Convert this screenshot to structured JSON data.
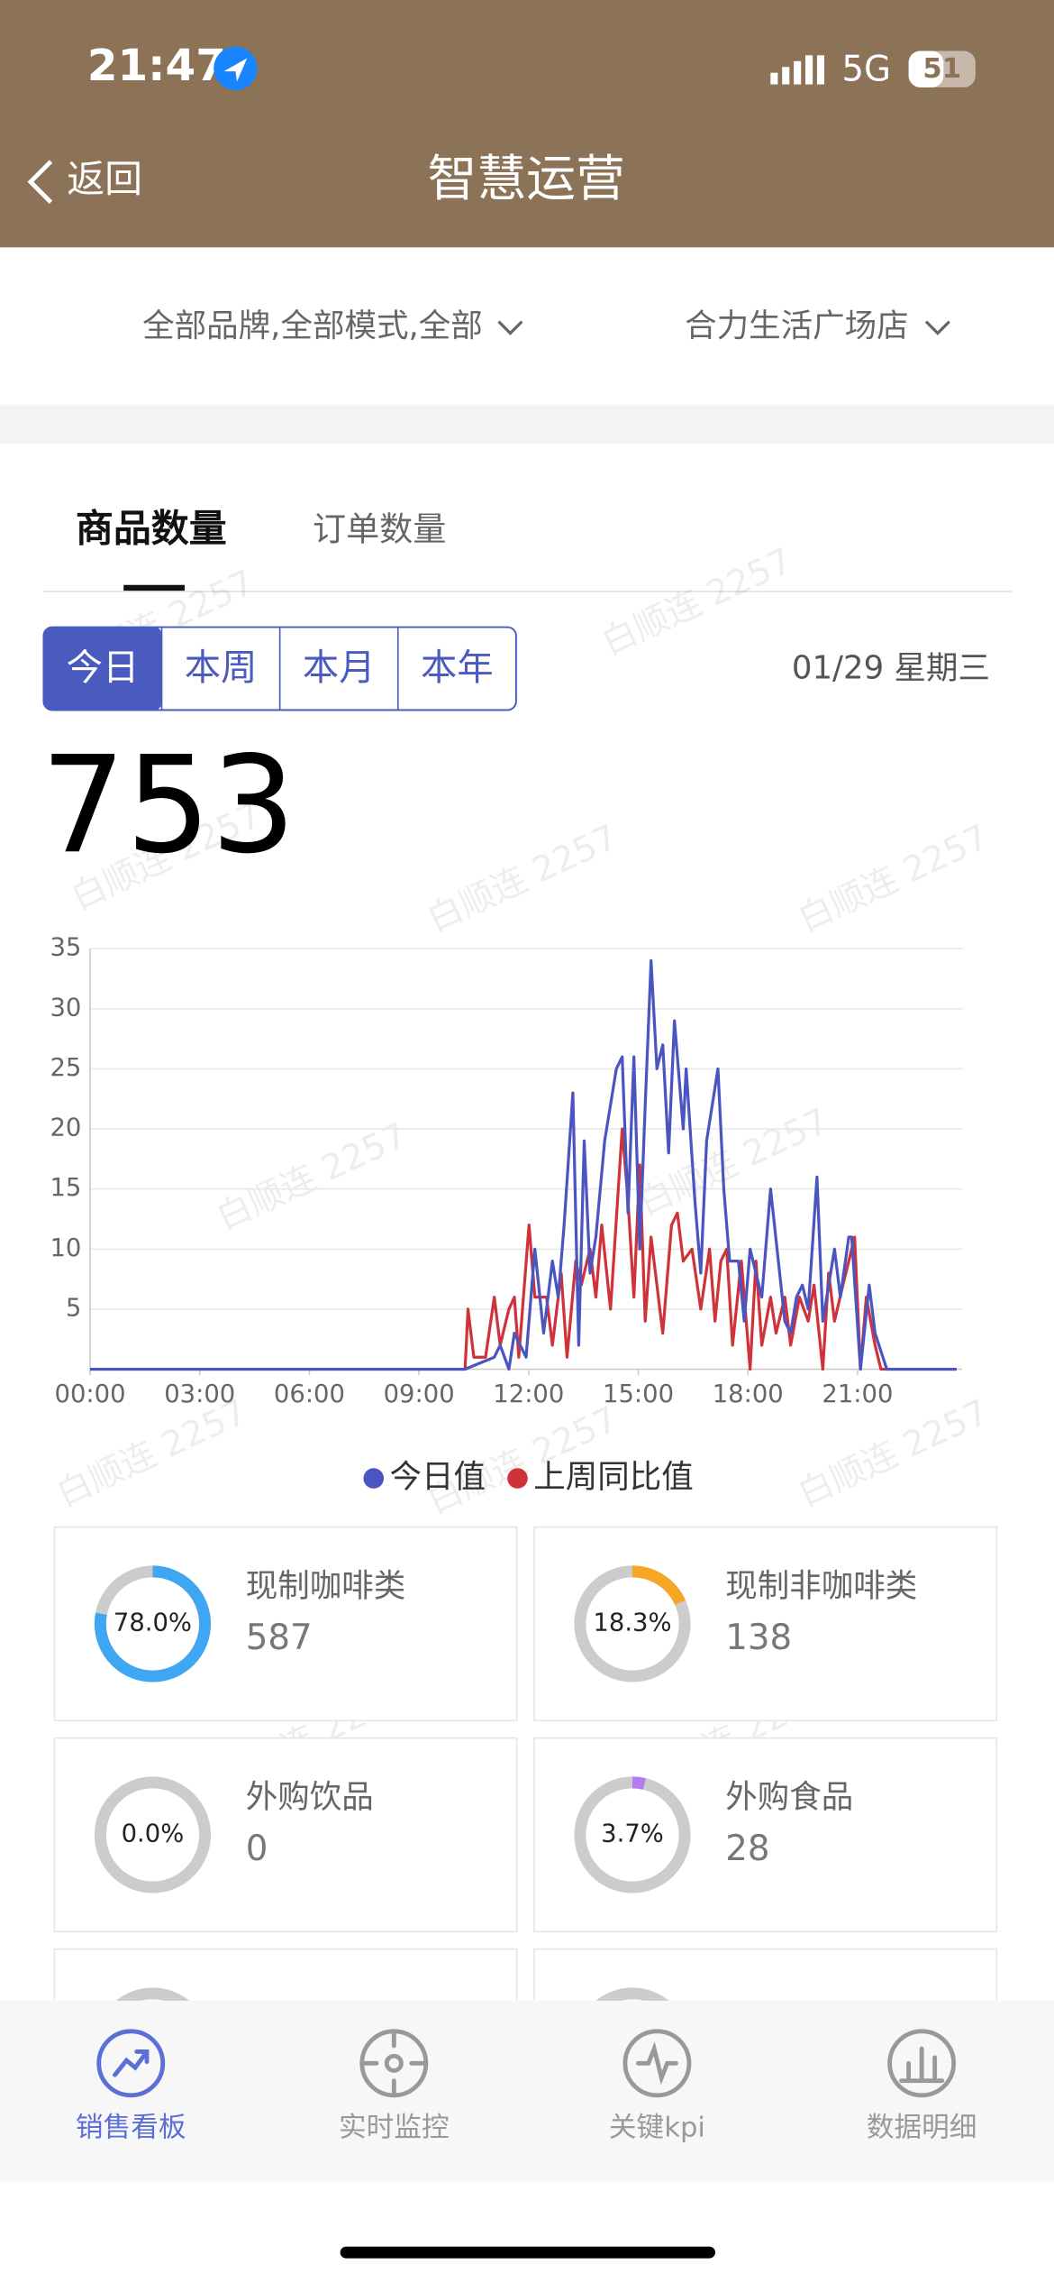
{
  "status_bar": {
    "time": "21:47",
    "network": "5G",
    "battery": "51"
  },
  "nav": {
    "back": "返回",
    "title": "智慧运营"
  },
  "filters": [
    "全部品牌,全部模式,全部",
    "合力生活广场店"
  ],
  "tabs": [
    "商品数量",
    "订单数量"
  ],
  "periods": [
    "今日",
    "本周",
    "本月",
    "本年"
  ],
  "date": "01/29 星期三",
  "total": 753,
  "watermark": "白顺连 2257",
  "chart_data": {
    "type": "line",
    "xlim": [
      0,
      23.87
    ],
    "ylim": [
      0,
      35
    ],
    "xticks": [
      {
        "value": 0,
        "label": "00:00"
      },
      {
        "value": 3,
        "label": "03:00"
      },
      {
        "value": 6,
        "label": "06:00"
      },
      {
        "value": 9,
        "label": "09:00"
      },
      {
        "value": 12,
        "label": "12:00"
      },
      {
        "value": 15,
        "label": "15:00"
      },
      {
        "value": 18,
        "label": "18:00"
      },
      {
        "value": 21,
        "label": "21:00"
      }
    ],
    "yticks": [
      5,
      10,
      15,
      20,
      25,
      30,
      35
    ],
    "grid": true,
    "legend": "bottom",
    "series": [
      {
        "name": "今日值",
        "color": "#4a55c0",
        "x": [
          0,
          10.26,
          11.06,
          11.22,
          11.46,
          11.61,
          11.93,
          12.17,
          12.41,
          12.65,
          12.81,
          12.97,
          13.21,
          13.37,
          13.52,
          13.68,
          13.84,
          14.08,
          14.4,
          14.56,
          14.72,
          14.88,
          15.04,
          15.19,
          15.35,
          15.51,
          15.67,
          15.83,
          15.99,
          16.23,
          16.31,
          16.55,
          16.71,
          16.87,
          17.18,
          17.34,
          17.5,
          17.74,
          17.9,
          18.06,
          18.22,
          18.38,
          18.62,
          19.01,
          19.17,
          19.33,
          19.49,
          19.65,
          19.89,
          20.05,
          20.37,
          20.53,
          20.76,
          20.84,
          21.08,
          21.32,
          21.48,
          21.8,
          23.71
        ],
        "values": [
          0,
          0,
          1,
          2,
          0,
          3,
          1,
          10,
          3,
          9,
          6,
          12,
          23,
          2,
          19,
          8,
          11,
          19,
          25,
          26,
          13,
          26,
          10,
          22,
          34,
          25,
          27,
          18,
          29,
          20,
          25,
          14,
          8,
          19,
          25,
          15,
          9,
          9,
          4,
          10,
          8,
          6,
          15,
          4,
          3,
          6,
          7,
          5,
          16,
          4,
          10,
          6,
          11,
          11,
          0,
          7,
          3,
          0,
          0
        ]
      },
      {
        "name": "上周同比值",
        "color": "#d0323a",
        "x": [
          0,
          10.26,
          10.34,
          10.5,
          10.82,
          11.06,
          11.22,
          11.46,
          11.61,
          11.73,
          12.01,
          12.17,
          12.49,
          12.65,
          12.89,
          13.05,
          13.29,
          13.44,
          13.68,
          13.84,
          14.0,
          14.24,
          14.56,
          14.72,
          14.88,
          15.04,
          15.19,
          15.35,
          15.67,
          15.91,
          16.07,
          16.23,
          16.47,
          16.71,
          16.95,
          17.1,
          17.26,
          17.42,
          17.58,
          17.82,
          18.06,
          18.22,
          18.38,
          18.62,
          18.77,
          19.01,
          19.17,
          19.41,
          19.65,
          19.81,
          20.05,
          20.21,
          20.37,
          20.6,
          20.76,
          20.92,
          21.08,
          21.24,
          21.48,
          21.64,
          23.71
        ],
        "values": [
          0,
          0,
          5,
          1,
          1,
          6,
          2,
          5,
          6,
          1,
          12,
          6,
          6,
          2,
          8,
          1,
          9,
          7,
          10,
          6,
          12,
          5,
          20,
          14,
          6,
          17,
          4,
          11,
          3,
          12,
          13,
          9,
          10,
          5,
          10,
          4,
          9,
          10,
          2,
          9,
          0,
          9,
          2,
          6,
          3,
          6,
          2,
          6,
          4,
          7,
          0,
          8,
          4,
          7,
          9,
          11,
          0,
          6,
          2,
          0,
          0
        ]
      }
    ]
  },
  "cards": [
    {
      "name": "现制咖啡类",
      "count": 587,
      "share": {
        "value": 78.0,
        "label": "78.0%"
      },
      "color": "#3ea6f2"
    },
    {
      "name": "现制非咖啡类",
      "count": 138,
      "share": {
        "value": 18.3,
        "label": "18.3%"
      },
      "color": "#f5a623"
    },
    {
      "name": "外购饮品",
      "count": 0,
      "share": {
        "value": 0.0,
        "label": "0.0%"
      }
    },
    {
      "name": "外购食品",
      "count": 28,
      "share": {
        "value": 3.7,
        "label": "3.7%"
      },
      "color": "#b57af0"
    }
  ],
  "bottom_nav": [
    "销售看板",
    "实时监控",
    "关键kpi",
    "数据明细"
  ]
}
